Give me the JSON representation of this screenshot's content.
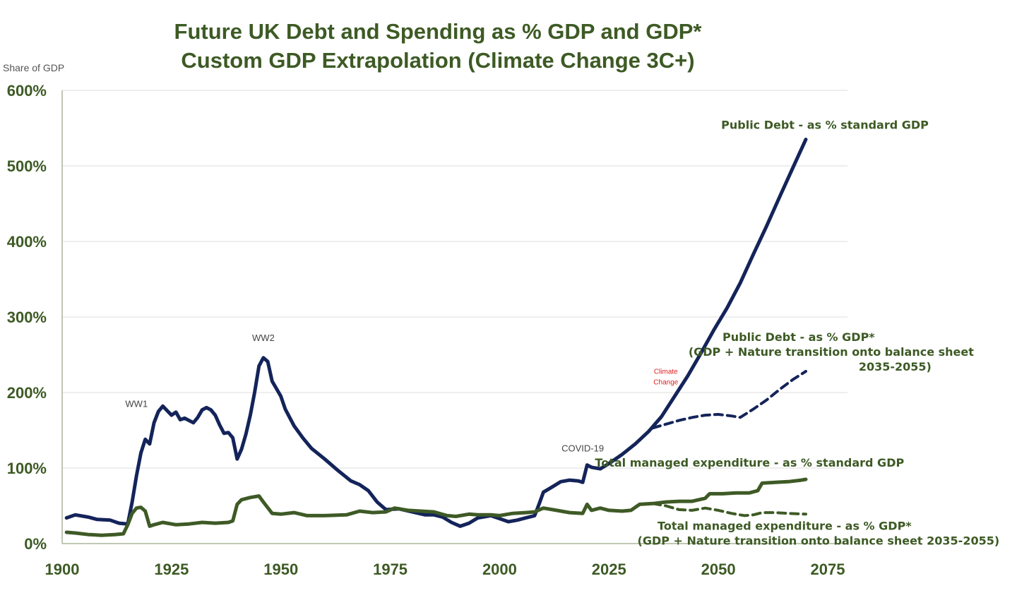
{
  "chart_data": {
    "type": "line",
    "title_line1": "Future UK Debt and Spending as % GDP and GDP*",
    "title_line2": "Custom GDP Extrapolation (Climate Change 3C+)",
    "ylabel": "Share of GDP",
    "xlim": [
      1900,
      2075
    ],
    "ylim": [
      0,
      600
    ],
    "x_ticks": [
      1900,
      1925,
      1950,
      1975,
      2000,
      2025,
      2050,
      2075
    ],
    "y_ticks": [
      0,
      100,
      200,
      300,
      400,
      500,
      600
    ],
    "y_tick_labels": [
      "0%",
      "100%",
      "200%",
      "300%",
      "400%",
      "500%",
      "600%"
    ],
    "colors": {
      "debt": "#14245a",
      "expenditure": "#3e5a26"
    },
    "series": [
      {
        "key": "debt_std",
        "label_lines": [
          "Public Debt - as % standard GDP"
        ],
        "style": "solid",
        "color": "#14245a",
        "points": [
          [
            1901,
            34
          ],
          [
            1903,
            38
          ],
          [
            1906,
            35
          ],
          [
            1908,
            32
          ],
          [
            1911,
            31
          ],
          [
            1913,
            27
          ],
          [
            1915,
            26
          ],
          [
            1916,
            55
          ],
          [
            1917,
            90
          ],
          [
            1918,
            120
          ],
          [
            1919,
            138
          ],
          [
            1920,
            132
          ],
          [
            1921,
            160
          ],
          [
            1922,
            175
          ],
          [
            1923,
            182
          ],
          [
            1924,
            176
          ],
          [
            1925,
            170
          ],
          [
            1926,
            174
          ],
          [
            1927,
            164
          ],
          [
            1928,
            166
          ],
          [
            1930,
            160
          ],
          [
            1931,
            167
          ],
          [
            1932,
            177
          ],
          [
            1933,
            180
          ],
          [
            1934,
            177
          ],
          [
            1935,
            170
          ],
          [
            1936,
            157
          ],
          [
            1937,
            146
          ],
          [
            1938,
            147
          ],
          [
            1939,
            140
          ],
          [
            1940,
            112
          ],
          [
            1941,
            125
          ],
          [
            1942,
            145
          ],
          [
            1943,
            170
          ],
          [
            1944,
            200
          ],
          [
            1945,
            235
          ],
          [
            1946,
            246
          ],
          [
            1947,
            241
          ],
          [
            1948,
            215
          ],
          [
            1949,
            205
          ],
          [
            1950,
            195
          ],
          [
            1951,
            178
          ],
          [
            1952,
            167
          ],
          [
            1953,
            156
          ],
          [
            1955,
            140
          ],
          [
            1957,
            126
          ],
          [
            1960,
            112
          ],
          [
            1963,
            97
          ],
          [
            1966,
            83
          ],
          [
            1968,
            78
          ],
          [
            1970,
            70
          ],
          [
            1972,
            55
          ],
          [
            1974,
            45
          ],
          [
            1977,
            46
          ],
          [
            1980,
            42
          ],
          [
            1983,
            38
          ],
          [
            1985,
            38
          ],
          [
            1987,
            35
          ],
          [
            1989,
            28
          ],
          [
            1991,
            23
          ],
          [
            1993,
            27
          ],
          [
            1995,
            34
          ],
          [
            1998,
            37
          ],
          [
            2000,
            33
          ],
          [
            2002,
            29
          ],
          [
            2004,
            31
          ],
          [
            2006,
            34
          ],
          [
            2008,
            37
          ],
          [
            2009,
            52
          ],
          [
            2010,
            68
          ],
          [
            2012,
            75
          ],
          [
            2014,
            82
          ],
          [
            2016,
            84
          ],
          [
            2018,
            83
          ],
          [
            2019,
            81
          ],
          [
            2020,
            104
          ],
          [
            2021,
            101
          ],
          [
            2023,
            99
          ],
          [
            2025,
            106
          ],
          [
            2028,
            118
          ],
          [
            2031,
            132
          ],
          [
            2034,
            148
          ],
          [
            2037,
            168
          ],
          [
            2040,
            195
          ],
          [
            2043,
            222
          ],
          [
            2046,
            252
          ],
          [
            2049,
            283
          ],
          [
            2052,
            312
          ],
          [
            2055,
            345
          ],
          [
            2058,
            383
          ],
          [
            2061,
            420
          ],
          [
            2064,
            459
          ],
          [
            2067,
            497
          ],
          [
            2070,
            535
          ]
        ]
      },
      {
        "key": "debt_star",
        "label_lines": [
          "Public Debt - as % GDP*",
          "(GDP + Nature transition onto balance sheet",
          "2035-2055)"
        ],
        "style": "dashed",
        "color": "#14245a",
        "points": [
          [
            2035,
            153
          ],
          [
            2038,
            158
          ],
          [
            2041,
            163
          ],
          [
            2044,
            167
          ],
          [
            2047,
            170
          ],
          [
            2050,
            171
          ],
          [
            2053,
            169
          ],
          [
            2055,
            167
          ],
          [
            2058,
            178
          ],
          [
            2061,
            190
          ],
          [
            2064,
            204
          ],
          [
            2067,
            217
          ],
          [
            2070,
            228
          ]
        ]
      },
      {
        "key": "tme_std",
        "label_lines": [
          "Total managed expenditure - as % standard GDP"
        ],
        "style": "solid",
        "color": "#3e5a26",
        "points": [
          [
            1901,
            15
          ],
          [
            1903,
            14
          ],
          [
            1906,
            12
          ],
          [
            1909,
            11
          ],
          [
            1912,
            12
          ],
          [
            1914,
            13
          ],
          [
            1915,
            25
          ],
          [
            1916,
            40
          ],
          [
            1917,
            47
          ],
          [
            1918,
            48
          ],
          [
            1919,
            43
          ],
          [
            1920,
            23
          ],
          [
            1921,
            25
          ],
          [
            1923,
            28
          ],
          [
            1926,
            25
          ],
          [
            1929,
            26
          ],
          [
            1932,
            28
          ],
          [
            1935,
            27
          ],
          [
            1938,
            28
          ],
          [
            1939,
            30
          ],
          [
            1940,
            52
          ],
          [
            1941,
            58
          ],
          [
            1943,
            61
          ],
          [
            1945,
            63
          ],
          [
            1946,
            55
          ],
          [
            1948,
            40
          ],
          [
            1950,
            39
          ],
          [
            1953,
            41
          ],
          [
            1956,
            37
          ],
          [
            1960,
            37
          ],
          [
            1965,
            38
          ],
          [
            1968,
            43
          ],
          [
            1971,
            41
          ],
          [
            1974,
            42
          ],
          [
            1976,
            47
          ],
          [
            1979,
            44
          ],
          [
            1982,
            43
          ],
          [
            1985,
            42
          ],
          [
            1988,
            37
          ],
          [
            1990,
            36
          ],
          [
            1993,
            39
          ],
          [
            1995,
            38
          ],
          [
            1998,
            38
          ],
          [
            2000,
            37
          ],
          [
            2003,
            40
          ],
          [
            2006,
            41
          ],
          [
            2008,
            42
          ],
          [
            2010,
            47
          ],
          [
            2013,
            44
          ],
          [
            2016,
            41
          ],
          [
            2019,
            40
          ],
          [
            2020,
            52
          ],
          [
            2021,
            44
          ],
          [
            2023,
            47
          ],
          [
            2025,
            44
          ],
          [
            2028,
            43
          ],
          [
            2030,
            44
          ],
          [
            2032,
            52
          ],
          [
            2035,
            53
          ],
          [
            2038,
            55
          ],
          [
            2041,
            56
          ],
          [
            2044,
            56
          ],
          [
            2047,
            60
          ],
          [
            2048,
            66
          ],
          [
            2051,
            66
          ],
          [
            2054,
            67
          ],
          [
            2057,
            67
          ],
          [
            2059,
            70
          ],
          [
            2060,
            80
          ],
          [
            2063,
            81
          ],
          [
            2066,
            82
          ],
          [
            2069,
            84
          ],
          [
            2070,
            85
          ]
        ]
      },
      {
        "key": "tme_star",
        "label_lines": [
          "Total managed expenditure - as % GDP*",
          "(GDP + Nature transition onto balance sheet 2035-2055)"
        ],
        "style": "dashed",
        "color": "#3e5a26",
        "points": [
          [
            2035,
            53
          ],
          [
            2038,
            50
          ],
          [
            2041,
            45
          ],
          [
            2044,
            44
          ],
          [
            2047,
            47
          ],
          [
            2050,
            44
          ],
          [
            2053,
            40
          ],
          [
            2056,
            37
          ],
          [
            2058,
            38
          ],
          [
            2060,
            41
          ],
          [
            2063,
            41
          ],
          [
            2066,
            40
          ],
          [
            2070,
            39
          ]
        ]
      }
    ],
    "annotations": [
      {
        "key": "ww1",
        "text": "WW1",
        "x": 1917,
        "y": 181
      },
      {
        "key": "ww2",
        "text": "WW2",
        "x": 1946,
        "y": 268
      },
      {
        "key": "covid",
        "text": "COVID-19",
        "x": 2019,
        "y": 122
      },
      {
        "key": "climate",
        "text": "Climate Change",
        "x": 2038,
        "y": 225
      }
    ]
  }
}
